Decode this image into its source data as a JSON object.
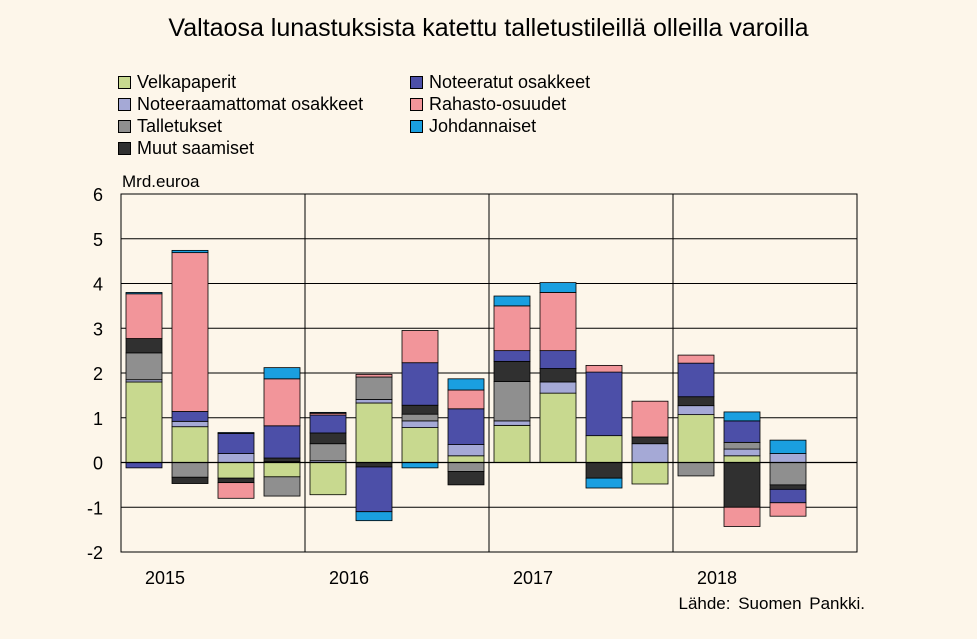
{
  "chart_data": {
    "type": "bar",
    "stacked": true,
    "title": "Valtaosa lunastuksista katettu talletustileillä olleilla varoilla",
    "ylabel": "Mrd.euroa",
    "ylim": [
      -2,
      6
    ],
    "yticks": [
      "6",
      "5",
      "4",
      "3",
      "2",
      "1",
      "0",
      "-1",
      "-2"
    ],
    "xtick_labels": [
      "2015",
      "2016",
      "2017",
      "2018"
    ],
    "grid": true,
    "legend_position": "top-left",
    "source": "Lähde: Suomen Pankki.",
    "quarters": [
      "2015Q1",
      "2015Q2",
      "2015Q3",
      "2015Q4",
      "2016Q1",
      "2016Q2",
      "2016Q3",
      "2016Q4",
      "2017Q1",
      "2017Q2",
      "2017Q3",
      "2017Q4",
      "2018Q1",
      "2018Q2",
      "2018Q3",
      "2018Q4"
    ],
    "series": [
      {
        "name": "Velkapaperit",
        "color": "#c8d98f",
        "values": [
          1.8,
          0.8,
          -0.35,
          -0.32,
          -0.72,
          1.33,
          0.78,
          0.15,
          0.83,
          1.55,
          0.6,
          -0.48,
          1.07,
          0.15,
          0.0,
          0.0
        ]
      },
      {
        "name": "Noteeraamattomat osakkeet",
        "color": "#a5a9d6",
        "values": [
          0.05,
          0.12,
          0.2,
          0.02,
          0.04,
          0.08,
          0.15,
          0.25,
          0.1,
          0.25,
          0.0,
          0.42,
          0.2,
          0.15,
          0.2,
          0.0
        ]
      },
      {
        "name": "Talletukset",
        "color": "#8f8f8f",
        "values": [
          0.6,
          -0.33,
          0.0,
          -0.43,
          0.38,
          0.5,
          0.15,
          -0.2,
          0.88,
          0.0,
          0.0,
          0.0,
          -0.3,
          0.15,
          -0.5,
          0.0
        ]
      },
      {
        "name": "Muut saamiset",
        "color": "#303030",
        "values": [
          0.32,
          -0.14,
          -0.1,
          0.08,
          0.24,
          -0.1,
          0.2,
          -0.3,
          0.45,
          0.3,
          -0.35,
          0.15,
          0.2,
          -1.0,
          -0.1,
          0.0
        ]
      },
      {
        "name": "Noteeratut osakkeet",
        "color": "#4c4fa8",
        "values": [
          -0.12,
          0.22,
          0.45,
          0.72,
          0.4,
          -1.0,
          0.95,
          0.8,
          0.24,
          0.4,
          1.42,
          0.0,
          0.75,
          0.48,
          -0.3,
          0.0
        ]
      },
      {
        "name": "Rahasto-osuudet",
        "color": "#f2959a",
        "values": [
          1.0,
          3.55,
          -0.35,
          1.05,
          0.04,
          0.06,
          0.72,
          0.42,
          1.0,
          1.3,
          0.15,
          0.8,
          0.18,
          -0.43,
          -0.3,
          0.0
        ]
      },
      {
        "name": "Johdannaiset",
        "color": "#1a9fe0",
        "values": [
          0.03,
          0.05,
          0.02,
          0.25,
          0.02,
          -0.2,
          -0.12,
          0.25,
          0.22,
          0.22,
          -0.22,
          0.0,
          0.0,
          0.2,
          0.3,
          0.0
        ]
      }
    ],
    "legend_order": [
      "Velkapaperit",
      "Noteeratut osakkeet",
      "Noteeraamattomat osakkeet",
      "Rahasto-osuudet",
      "Talletukset",
      "Johdannaiset",
      "Muut saamiset"
    ]
  }
}
